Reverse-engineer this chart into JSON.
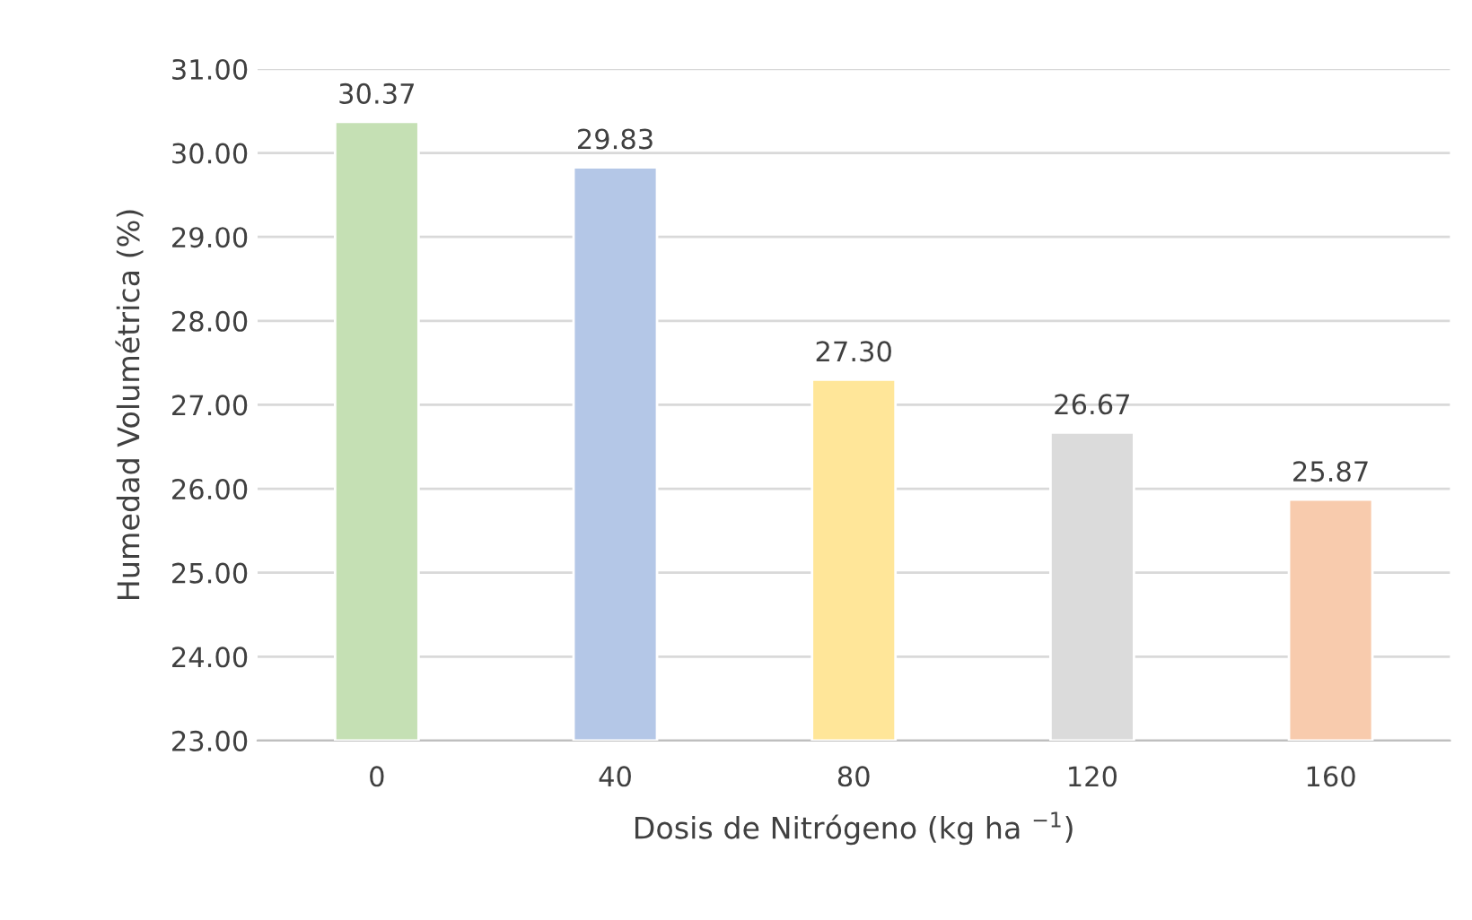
{
  "chart_data": {
    "type": "bar",
    "categories": [
      "0",
      "40",
      "80",
      "120",
      "160"
    ],
    "values": [
      30.37,
      29.83,
      27.3,
      26.67,
      25.87
    ],
    "colors": [
      "#c5e0b4",
      "#b4c7e7",
      "#ffe699",
      "#dbdbdb",
      "#f8cbad"
    ],
    "xlabel": "Dosis de Nitrógeno (kg ha $^{−1}$)",
    "ylabel": "Humedad Volumétrica (%)",
    "ylim": [
      23,
      31
    ],
    "yticks": [
      {
        "value": 23,
        "label": "23.00"
      },
      {
        "value": 24,
        "label": "24.00"
      },
      {
        "value": 25,
        "label": "25.00"
      },
      {
        "value": 26,
        "label": "26.00"
      },
      {
        "value": 27,
        "label": "27.00"
      },
      {
        "value": 28,
        "label": "28.00"
      },
      {
        "value": 29,
        "label": "29.00"
      },
      {
        "value": 30,
        "label": "30.00"
      },
      {
        "value": 31,
        "label": "31.00"
      }
    ],
    "value_labels": [
      "30.37",
      "29.83",
      "27.30",
      "26.67",
      "25.87"
    ],
    "grid": "y"
  }
}
